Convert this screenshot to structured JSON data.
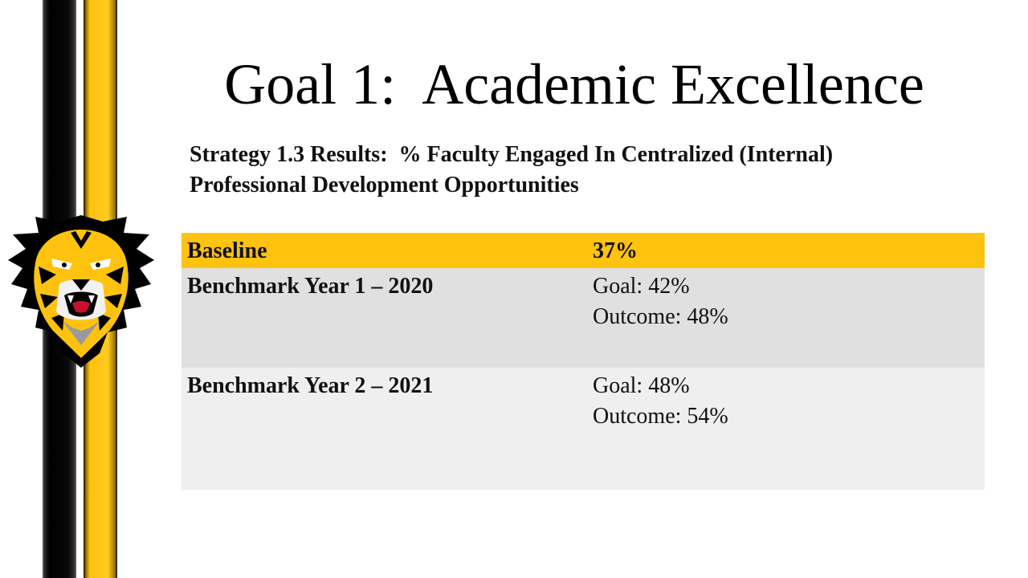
{
  "slide": {
    "title": "Goal 1:  Academic Excellence",
    "subtitle": "Strategy 1.3 Results:  % Faculty Engaged In Centralized (Internal)\nProfessional Development Opportunities"
  },
  "colors": {
    "gold": "#ffc20e",
    "black": "#000000",
    "row_dark": "#e0e0e0",
    "row_light": "#efefef"
  },
  "logo": {
    "icon": "tiger-head-icon"
  },
  "table": {
    "rows": [
      {
        "label": "Baseline",
        "lines": [
          "37%"
        ]
      },
      {
        "label": "Benchmark Year 1 – 2020",
        "lines": [
          "Goal: 42%",
          "Outcome: 48%"
        ]
      },
      {
        "label": "Benchmark Year 2 – 2021",
        "lines": [
          "Goal: 48%",
          "Outcome: 54%"
        ]
      }
    ]
  }
}
